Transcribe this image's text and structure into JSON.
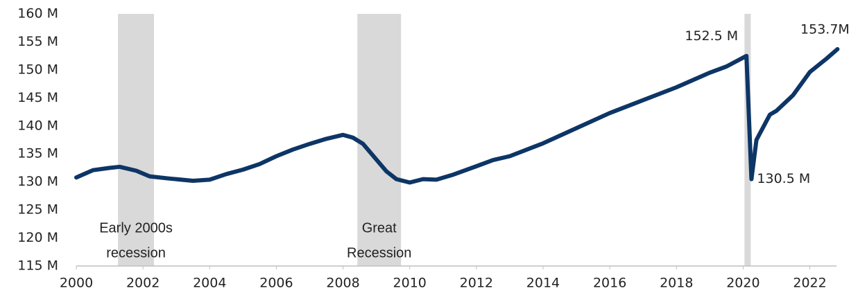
{
  "chart_data": {
    "type": "line",
    "color": "#0d3566",
    "x": [
      2000.0,
      2000.5,
      2001.0,
      2001.3,
      2001.8,
      2002.2,
      2002.8,
      2003.5,
      2004.0,
      2004.5,
      2005.0,
      2005.5,
      2006.0,
      2006.5,
      2007.0,
      2007.5,
      2008.0,
      2008.3,
      2008.6,
      2009.0,
      2009.3,
      2009.6,
      2010.0,
      2010.4,
      2010.8,
      2011.3,
      2012.0,
      2012.5,
      2013.0,
      2014.0,
      2015.0,
      2016.0,
      2017.0,
      2018.0,
      2019.0,
      2019.5,
      2020.1,
      2020.25,
      2020.4,
      2020.8,
      2021.0,
      2021.5,
      2022.0,
      2022.5,
      2022.83
    ],
    "values": [
      130.8,
      132.1,
      132.5,
      132.7,
      132.0,
      131.0,
      130.6,
      130.2,
      130.4,
      131.4,
      132.2,
      133.2,
      134.6,
      135.8,
      136.8,
      137.7,
      138.4,
      137.9,
      136.8,
      134.0,
      131.9,
      130.5,
      129.9,
      130.5,
      130.4,
      131.3,
      132.8,
      133.9,
      134.6,
      136.9,
      139.6,
      142.3,
      144.6,
      146.9,
      149.5,
      150.6,
      152.5,
      130.5,
      137.5,
      142.0,
      142.7,
      145.5,
      149.6,
      152.0,
      153.7
    ],
    "xlim": [
      2000,
      2022.8
    ],
    "ylim": [
      115,
      160
    ],
    "xticks": [
      2000,
      2002,
      2004,
      2006,
      2008,
      2010,
      2012,
      2014,
      2016,
      2018,
      2020,
      2022
    ],
    "yticks": [
      {
        "value": 115,
        "label": "115 M"
      },
      {
        "value": 120,
        "label": "120 M"
      },
      {
        "value": 125,
        "label": "125 M"
      },
      {
        "value": 130,
        "label": "130 M"
      },
      {
        "value": 135,
        "label": "135 M"
      },
      {
        "value": 140,
        "label": "140 M"
      },
      {
        "value": 145,
        "label": "145 M"
      },
      {
        "value": 150,
        "label": "150 M"
      },
      {
        "value": 155,
        "label": "155 M"
      },
      {
        "value": 160,
        "label": "160 M"
      }
    ],
    "recessions": [
      {
        "start": 2001.25,
        "end": 2002.33,
        "label": [
          "Early 2000s",
          "recession"
        ]
      },
      {
        "start": 2008.43,
        "end": 2009.74,
        "label": [
          "Great",
          "Recession"
        ]
      },
      {
        "start": 2020.04,
        "end": 2020.23
      }
    ],
    "annotations": [
      {
        "x": 2020.1,
        "y": 152.5,
        "label": "152.5 M"
      },
      {
        "x": 2020.25,
        "y": 130.5,
        "label": "130.5 M"
      },
      {
        "x": 2022.83,
        "y": 153.7,
        "label": "153.7M"
      }
    ]
  }
}
